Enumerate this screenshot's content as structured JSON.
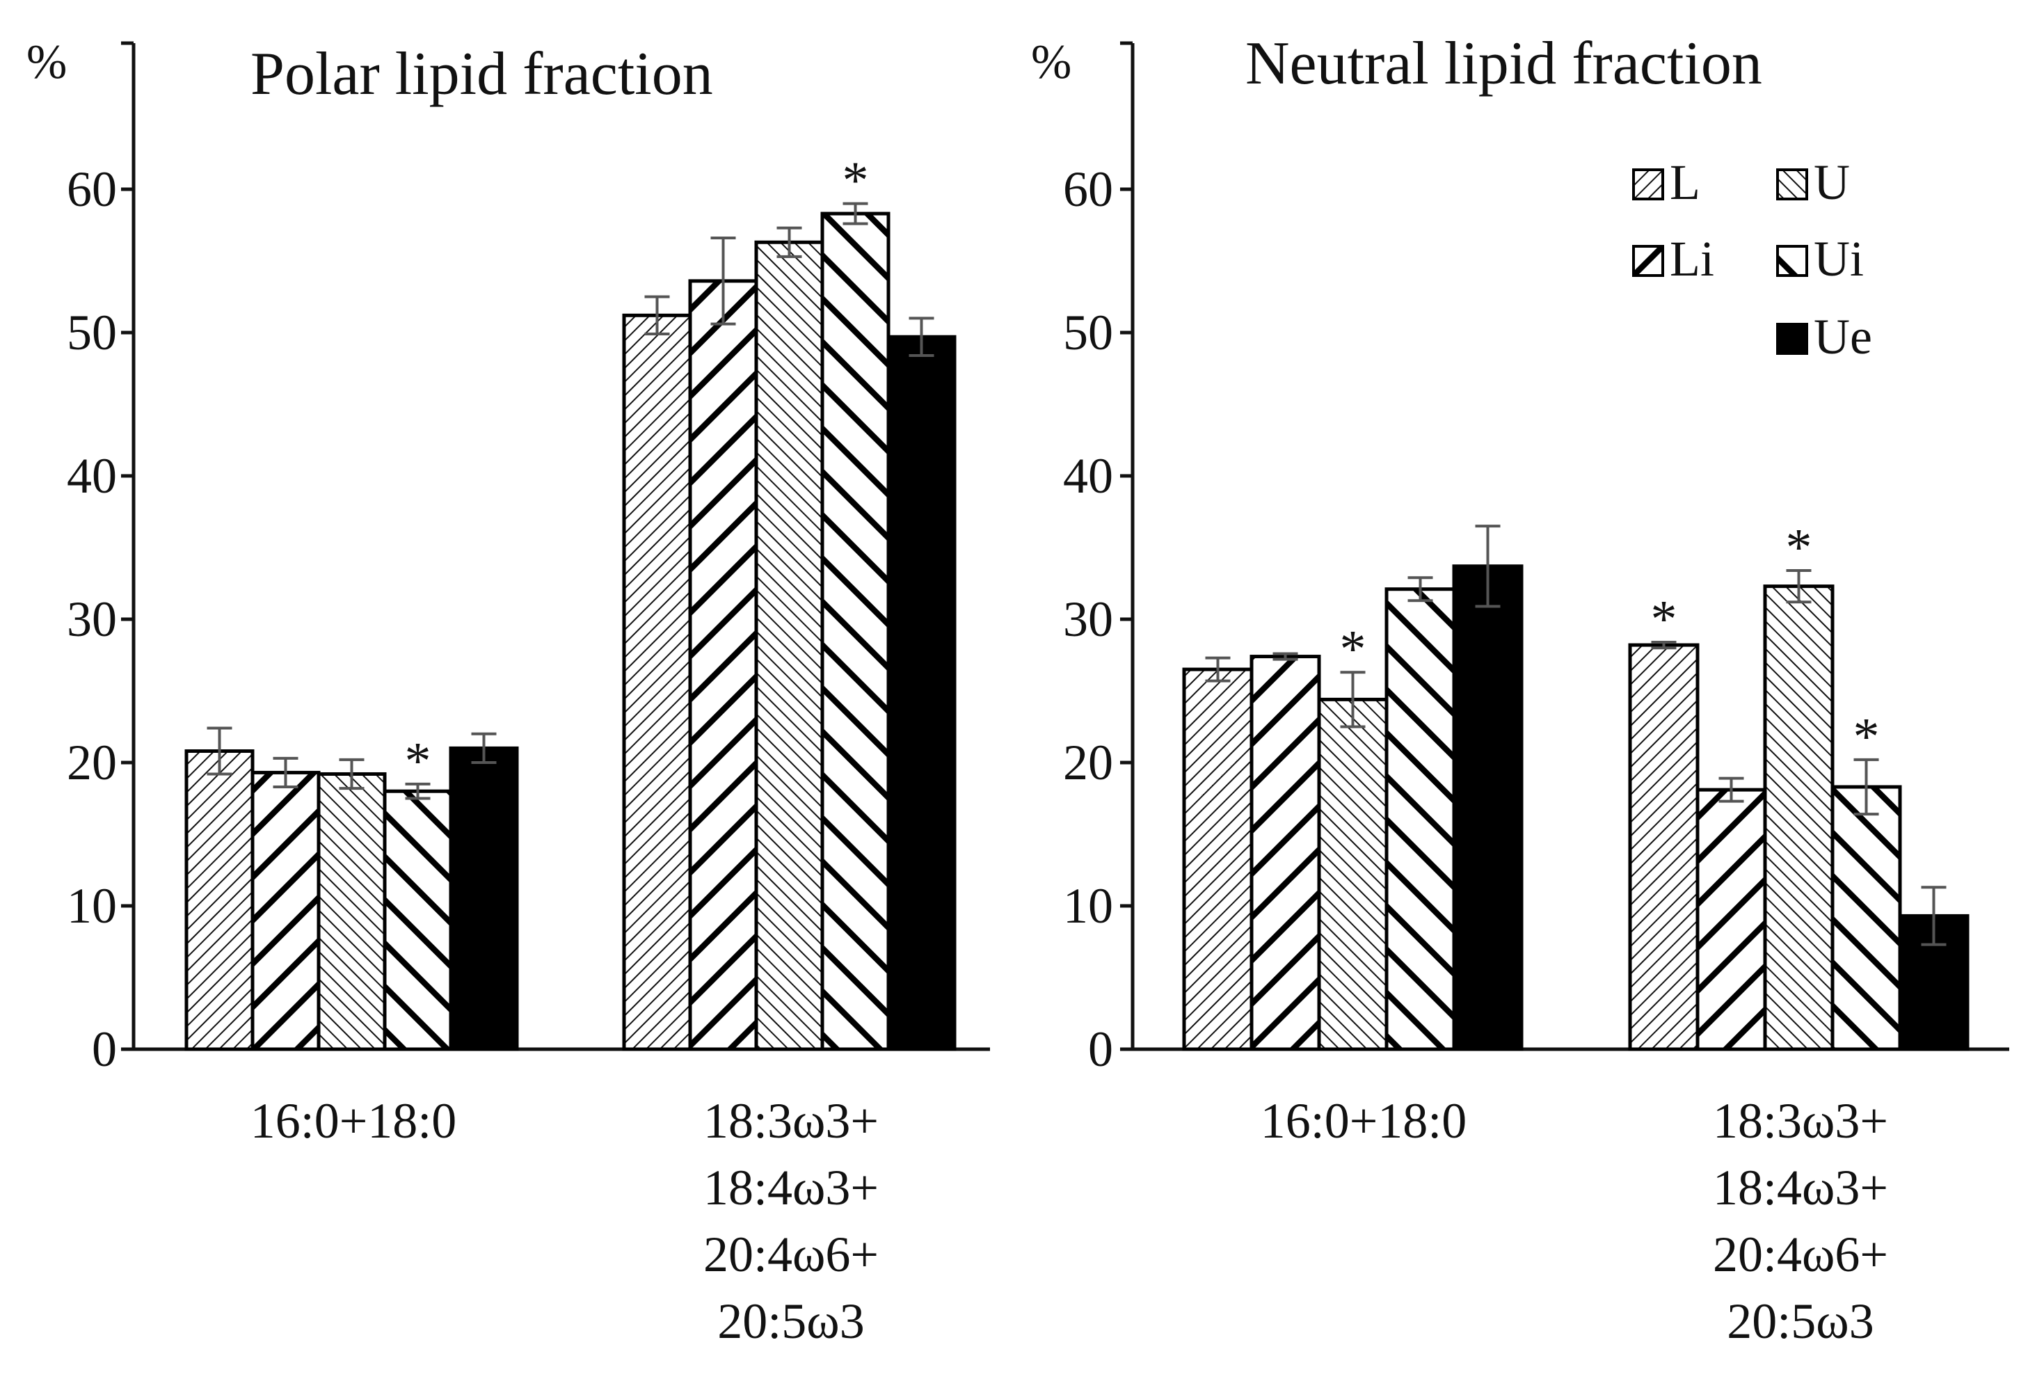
{
  "chart_data": [
    {
      "type": "bar",
      "title": "Polar lipid fraction",
      "ylabel": "%",
      "ylim": [
        0,
        70
      ],
      "yticks": [
        "0",
        "10",
        "20",
        "30",
        "40",
        "50",
        "60"
      ],
      "categories": [
        [
          "16:0+18:0"
        ],
        [
          "18:3ω3+",
          "18:4ω3+",
          "20:4ω6+",
          "20:5ω3"
        ]
      ],
      "series": [
        {
          "name": "L",
          "values": [
            20.8,
            51.2
          ],
          "errors": [
            1.6,
            1.3
          ],
          "significant": [
            false,
            false
          ]
        },
        {
          "name": "Li",
          "values": [
            19.3,
            53.6
          ],
          "errors": [
            1.0,
            3.0
          ],
          "significant": [
            false,
            false
          ]
        },
        {
          "name": "U",
          "values": [
            19.2,
            56.3
          ],
          "errors": [
            1.0,
            1.0
          ],
          "significant": [
            false,
            false
          ]
        },
        {
          "name": "Ui",
          "values": [
            18.0,
            58.3
          ],
          "errors": [
            0.5,
            0.7
          ],
          "significant": [
            true,
            true
          ]
        },
        {
          "name": "Ue",
          "values": [
            21.0,
            49.7
          ],
          "errors": [
            1.0,
            1.3
          ],
          "significant": [
            false,
            false
          ]
        }
      ],
      "significance_marker": "*"
    },
    {
      "type": "bar",
      "title": "Neutral lipid fraction",
      "ylabel": "%",
      "ylim": [
        0,
        70
      ],
      "yticks": [
        "0",
        "10",
        "20",
        "30",
        "40",
        "50",
        "60"
      ],
      "categories": [
        [
          "16:0+18:0"
        ],
        [
          "18:3ω3+",
          "18:4ω3+",
          "20:4ω6+",
          "20:5ω3"
        ]
      ],
      "series": [
        {
          "name": "L",
          "values": [
            26.5,
            28.2
          ],
          "errors": [
            0.8,
            0.2
          ],
          "significant": [
            false,
            true
          ]
        },
        {
          "name": "Li",
          "values": [
            27.4,
            18.1
          ],
          "errors": [
            0.2,
            0.8
          ],
          "significant": [
            false,
            false
          ]
        },
        {
          "name": "U",
          "values": [
            24.4,
            32.3
          ],
          "errors": [
            1.9,
            1.1
          ],
          "significant": [
            true,
            true
          ]
        },
        {
          "name": "Ui",
          "values": [
            32.1,
            18.3
          ],
          "errors": [
            0.8,
            1.9
          ],
          "significant": [
            false,
            true
          ]
        },
        {
          "name": "Ue",
          "values": [
            33.7,
            9.3
          ],
          "errors": [
            2.8,
            2.0
          ],
          "significant": [
            false,
            false
          ]
        }
      ],
      "significance_marker": "*",
      "legend": {
        "placement": "top-right",
        "entries": [
          "L",
          "U",
          "Li",
          "Ui",
          "Ue"
        ]
      }
    }
  ]
}
